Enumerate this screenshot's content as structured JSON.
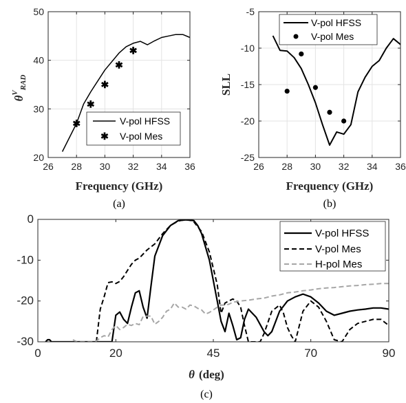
{
  "chart_data": [
    {
      "id": "a",
      "type": "line",
      "caption": "(a)",
      "xlabel": "Frequency (GHz)",
      "ylabel": "θ^V_RAD",
      "xlim": [
        26,
        36
      ],
      "ylim": [
        20,
        50
      ],
      "xticks": [
        26,
        28,
        30,
        32,
        34,
        36
      ],
      "yticks": [
        20,
        30,
        40,
        50
      ],
      "grid": true,
      "legend_position": "bottom-right",
      "series": [
        {
          "name": "V-pol HFSS",
          "style": "solid",
          "color": "#000000",
          "x": [
            27,
            28,
            28.5,
            29,
            30,
            31,
            31.5,
            32,
            32.5,
            33,
            33.5,
            34,
            34.5,
            35,
            35.5,
            36
          ],
          "y": [
            21.2,
            27.0,
            31.0,
            33.5,
            38.0,
            41.5,
            42.8,
            43.5,
            43.9,
            43.2,
            44.0,
            44.7,
            45.0,
            45.3,
            45.3,
            44.7
          ]
        },
        {
          "name": "V-pol Mes",
          "style": "marker",
          "color": "#000000",
          "x": [
            28,
            29,
            30,
            31,
            32
          ],
          "y": [
            27.0,
            31.0,
            35.0,
            39.0,
            42.0
          ]
        }
      ]
    },
    {
      "id": "b",
      "type": "line",
      "caption": "(b)",
      "xlabel": "Frequency (GHz)",
      "ylabel": "SLL",
      "xlim": [
        26,
        36
      ],
      "ylim": [
        -25,
        -5
      ],
      "xticks": [
        26,
        28,
        30,
        32,
        34,
        36
      ],
      "yticks": [
        -25,
        -20,
        -15,
        -10,
        -5
      ],
      "grid": true,
      "legend_position": "top-right",
      "series": [
        {
          "name": "V-pol HFSS",
          "style": "solid",
          "color": "#000000",
          "x": [
            27,
            27.5,
            28,
            28.5,
            29,
            29.5,
            30,
            30.5,
            31,
            31.5,
            32,
            32.5,
            33,
            33.5,
            34,
            34.5,
            35,
            35.5,
            36
          ],
          "y": [
            -8.3,
            -10.3,
            -10.4,
            -11.3,
            -12.8,
            -15.0,
            -17.5,
            -20.5,
            -23.3,
            -21.5,
            -21.8,
            -20.5,
            -16.0,
            -14.0,
            -12.5,
            -11.7,
            -10.0,
            -8.7,
            -9.5
          ]
        },
        {
          "name": "V-pol Mes",
          "style": "marker",
          "color": "#000000",
          "x": [
            28,
            29,
            30,
            31,
            32
          ],
          "y": [
            -15.9,
            -10.8,
            -15.4,
            -18.8,
            -20.0
          ]
        }
      ]
    },
    {
      "id": "c",
      "type": "line",
      "caption": "(c)",
      "xlabel": "θ (deg)",
      "ylabel": "",
      "xlim": [
        0,
        90
      ],
      "ylim": [
        -30,
        0
      ],
      "xticks": [
        0,
        20,
        45,
        70,
        90
      ],
      "yticks": [
        -30,
        -20,
        -10,
        0
      ],
      "grid": false,
      "legend_position": "top-right",
      "series": [
        {
          "name": "V-pol HFSS",
          "style": "solid",
          "color": "#000000",
          "x": [
            2,
            2.5,
            3,
            3.5,
            19,
            20,
            21,
            22,
            23,
            24,
            25,
            26,
            27,
            28,
            29,
            30,
            32,
            34,
            36,
            38,
            40,
            41,
            42,
            44,
            46,
            47,
            48,
            49,
            50,
            51,
            52,
            53,
            54,
            56,
            58,
            59,
            60,
            62,
            64,
            66,
            68,
            70,
            72,
            74,
            76,
            78,
            80,
            82,
            84,
            86,
            88,
            90
          ],
          "y": [
            -30,
            -29.5,
            -29.5,
            -30,
            -30,
            -23.5,
            -22.7,
            -24.5,
            -25.5,
            -21.5,
            -18.0,
            -17.5,
            -21.5,
            -24.2,
            -16.5,
            -9.0,
            -4.0,
            -1.5,
            -0.3,
            -0.1,
            -0.3,
            -1.5,
            -3.5,
            -10.0,
            -20.0,
            -25.0,
            -27.5,
            -23.0,
            -26.0,
            -29.5,
            -29.0,
            -24.5,
            -22.0,
            -24.0,
            -27.5,
            -28.5,
            -27.5,
            -22.5,
            -20.0,
            -19.0,
            -18.3,
            -19.0,
            -20.5,
            -22.5,
            -23.5,
            -23.0,
            -22.5,
            -22.2,
            -22.0,
            -21.7,
            -21.7,
            -22.0
          ]
        },
        {
          "name": "V-pol Mes",
          "style": "dashed",
          "color": "#000000",
          "x": [
            15,
            16,
            17,
            18,
            19,
            20,
            21,
            22,
            23,
            24,
            25,
            26,
            28,
            30,
            32,
            34,
            36,
            37,
            38,
            39,
            40,
            42,
            44,
            46,
            47,
            48,
            50,
            51,
            52,
            53,
            54,
            55,
            57,
            58,
            60,
            62,
            63,
            64,
            65,
            66,
            68,
            70,
            72,
            74,
            76,
            78,
            80,
            82,
            84,
            86,
            88,
            90
          ],
          "y": [
            -30,
            -22.0,
            -19.0,
            -15.5,
            -15.3,
            -15.7,
            -15.2,
            -14.0,
            -12.5,
            -11.0,
            -10.0,
            -9.5,
            -7.5,
            -6.0,
            -3.5,
            -1.5,
            -0.4,
            -0.2,
            -0.1,
            -0.2,
            -0.6,
            -3.0,
            -8.0,
            -16.0,
            -23.0,
            -20.5,
            -19.5,
            -20.0,
            -21.5,
            -26.0,
            -30.0,
            -30.0,
            -30.0,
            -28.0,
            -22.5,
            -21.0,
            -23.0,
            -26.5,
            -28.5,
            -30.0,
            -22.5,
            -20.0,
            -21.5,
            -25.0,
            -29.5,
            -30.0,
            -27.0,
            -25.5,
            -25.0,
            -24.5,
            -24.5,
            -26.0
          ]
        },
        {
          "name": "H-pol Mes",
          "style": "dashed",
          "color": "#a6a6a6",
          "x": [
            9,
            10,
            11,
            12,
            13,
            14,
            15,
            16,
            17,
            18,
            19,
            20,
            21,
            22,
            23,
            24,
            25,
            26,
            27,
            28,
            29,
            30,
            31,
            32,
            33,
            34,
            35,
            36,
            37,
            38,
            39,
            40,
            41,
            42,
            43,
            44,
            45,
            46,
            47,
            48,
            49,
            50,
            52,
            54,
            56,
            58,
            60,
            62,
            64,
            66,
            68,
            70,
            72,
            74,
            76,
            78,
            80,
            82,
            84,
            86,
            88,
            90
          ],
          "y": [
            -29.5,
            -30.0,
            -30.0,
            -30.0,
            -30.0,
            -30.0,
            -29.8,
            -29.0,
            -28.5,
            -28.8,
            -27.0,
            -26.0,
            -27.0,
            -26.5,
            -25.7,
            -26.0,
            -25.5,
            -25.8,
            -23.8,
            -23.7,
            -23.7,
            -25.7,
            -25.0,
            -24.0,
            -22.5,
            -22.0,
            -20.5,
            -21.5,
            -21.5,
            -22.0,
            -21.0,
            -21.2,
            -21.8,
            -22.2,
            -23.2,
            -22.8,
            -22.2,
            -21.5,
            -21.0,
            -21.0,
            -20.8,
            -20.3,
            -20.0,
            -19.8,
            -19.5,
            -19.3,
            -18.8,
            -18.5,
            -18.0,
            -17.8,
            -17.5,
            -17.3,
            -17.0,
            -16.8,
            -16.7,
            -16.5,
            -16.3,
            -16.2,
            -16.0,
            -15.9,
            -15.7,
            -15.7
          ]
        }
      ]
    }
  ]
}
